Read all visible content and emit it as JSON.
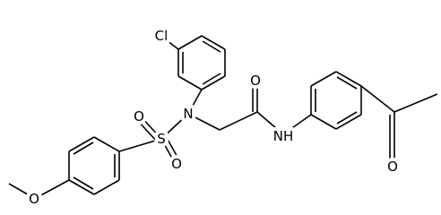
{
  "nodes": [
    {
      "label": "Cl"
    },
    {
      "label": "N"
    },
    {
      "label": "S"
    },
    {
      "label": "O"
    },
    {
      "label": "O"
    },
    {
      "label": "O"
    },
    {
      "label": "O"
    },
    {
      "label": "NH"
    },
    {
      "label": "O"
    }
  ]
}
